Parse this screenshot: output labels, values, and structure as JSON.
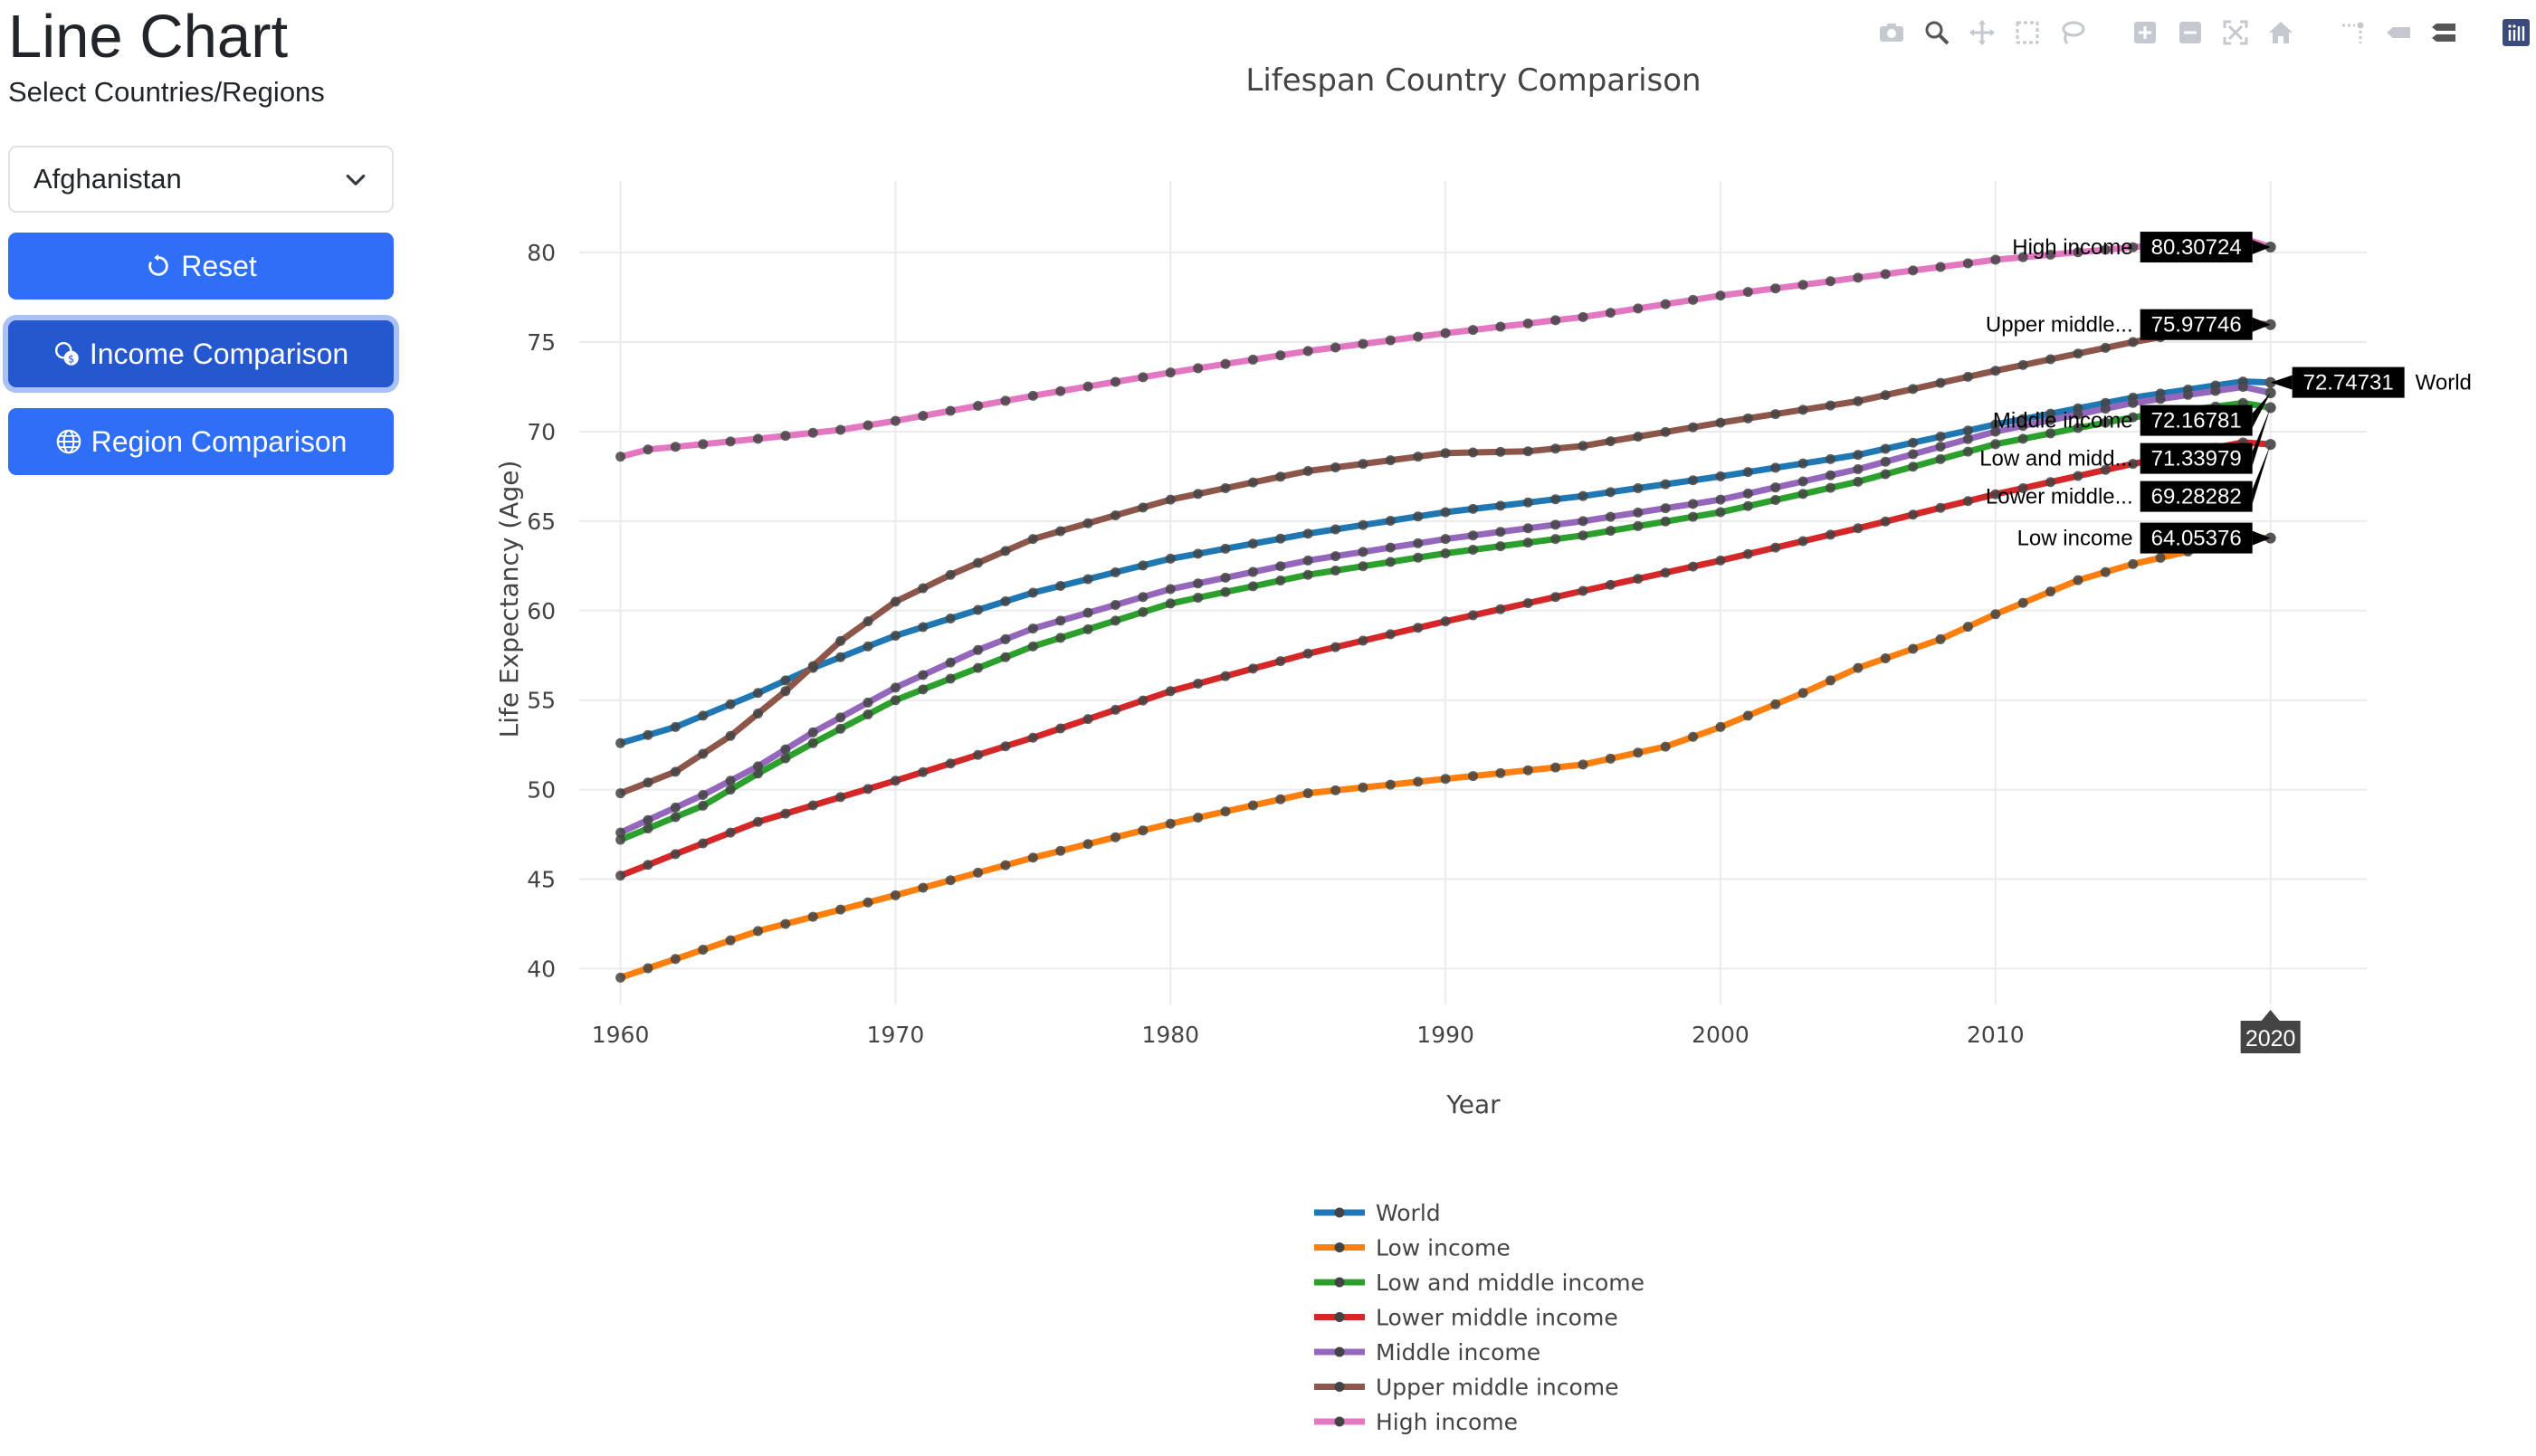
{
  "sidebar": {
    "title": "Line Chart",
    "subtitle": "Select Countries/Regions",
    "select_value": "Afghanistan",
    "reset_label": "Reset",
    "income_label": "Income Comparison",
    "region_label": "Region Comparison"
  },
  "colors": {
    "primary": "#2f6ef7",
    "primary_active": "#2558cf"
  },
  "modebar_icons": [
    "camera-icon",
    "zoom-icon",
    "pan-icon",
    "box-select-icon",
    "lasso-icon",
    "zoom-in-icon",
    "zoom-out-icon",
    "autoscale-icon",
    "reset-axes-icon",
    "spike-lines-icon",
    "hover-closest-icon",
    "hover-compare-icon",
    "plotly-logo-icon"
  ],
  "chart_data": {
    "type": "line",
    "title": "Lifespan Country Comparison",
    "xlabel": "Year",
    "ylabel": "Life Expectancy (Age)",
    "xlim": [
      1958.5,
      2023.5
    ],
    "ylim": [
      38,
      84
    ],
    "xticks": [
      1960,
      1970,
      1980,
      1990,
      2000,
      2010
    ],
    "yticks": [
      40,
      45,
      50,
      55,
      60,
      65,
      70,
      75,
      80
    ],
    "grid": true,
    "legend_position": "bottom-center",
    "hover_x_label": "2020",
    "x": [
      1960,
      1961,
      1962,
      1963,
      1964,
      1965,
      1966,
      1967,
      1968,
      1969,
      1970,
      1971,
      1972,
      1973,
      1974,
      1975,
      1976,
      1977,
      1978,
      1979,
      1980,
      1981,
      1982,
      1983,
      1984,
      1985,
      1986,
      1987,
      1988,
      1989,
      1990,
      1991,
      1992,
      1993,
      1994,
      1995,
      1996,
      1997,
      1998,
      1999,
      2000,
      2001,
      2002,
      2003,
      2004,
      2005,
      2006,
      2007,
      2008,
      2009,
      2010,
      2011,
      2012,
      2013,
      2014,
      2015,
      2016,
      2017,
      2018,
      2019,
      2020
    ],
    "series": [
      {
        "name": "World",
        "color": "#1f77b4",
        "hover_label": "World",
        "hover_value": "72.74731",
        "keyframes": [
          [
            1960,
            52.6
          ],
          [
            1962,
            53.5
          ],
          [
            1965,
            55.4
          ],
          [
            1967,
            56.8
          ],
          [
            1970,
            58.6
          ],
          [
            1975,
            61.0
          ],
          [
            1980,
            62.9
          ],
          [
            1985,
            64.3
          ],
          [
            1990,
            65.5
          ],
          [
            1995,
            66.4
          ],
          [
            2000,
            67.5
          ],
          [
            2005,
            68.7
          ],
          [
            2010,
            70.4
          ],
          [
            2015,
            71.9
          ],
          [
            2019,
            72.8
          ],
          [
            2020,
            72.74731
          ]
        ]
      },
      {
        "name": "Low income",
        "color": "#ff7f0e",
        "hover_label": "Low income",
        "hover_value": "64.05376",
        "keyframes": [
          [
            1960,
            39.5
          ],
          [
            1965,
            42.1
          ],
          [
            1970,
            44.1
          ],
          [
            1975,
            46.2
          ],
          [
            1980,
            48.1
          ],
          [
            1985,
            49.8
          ],
          [
            1990,
            50.6
          ],
          [
            1995,
            51.4
          ],
          [
            1998,
            52.4
          ],
          [
            2000,
            53.5
          ],
          [
            2003,
            55.4
          ],
          [
            2005,
            56.8
          ],
          [
            2008,
            58.4
          ],
          [
            2010,
            59.8
          ],
          [
            2013,
            61.7
          ],
          [
            2015,
            62.6
          ],
          [
            2017,
            63.3
          ],
          [
            2019,
            64.1
          ],
          [
            2020,
            64.05376
          ]
        ]
      },
      {
        "name": "Low and middle income",
        "color": "#2ca02c",
        "hover_label": "Low and midd...",
        "hover_value": "71.33979",
        "keyframes": [
          [
            1960,
            47.2
          ],
          [
            1963,
            49.1
          ],
          [
            1965,
            50.9
          ],
          [
            1967,
            52.6
          ],
          [
            1970,
            55.0
          ],
          [
            1973,
            56.8
          ],
          [
            1975,
            58.0
          ],
          [
            1980,
            60.4
          ],
          [
            1985,
            62.0
          ],
          [
            1990,
            63.2
          ],
          [
            1995,
            64.2
          ],
          [
            2000,
            65.5
          ],
          [
            2005,
            67.2
          ],
          [
            2010,
            69.3
          ],
          [
            2015,
            70.8
          ],
          [
            2019,
            71.6
          ],
          [
            2020,
            71.33979
          ]
        ]
      },
      {
        "name": "Lower middle income",
        "color": "#d62728",
        "hover_label": "Lower middle...",
        "hover_value": "69.28282",
        "keyframes": [
          [
            1960,
            45.2
          ],
          [
            1965,
            48.2
          ],
          [
            1970,
            50.5
          ],
          [
            1975,
            52.9
          ],
          [
            1980,
            55.5
          ],
          [
            1985,
            57.6
          ],
          [
            1990,
            59.4
          ],
          [
            1995,
            61.1
          ],
          [
            2000,
            62.8
          ],
          [
            2005,
            64.6
          ],
          [
            2010,
            66.5
          ],
          [
            2015,
            68.2
          ],
          [
            2019,
            69.4
          ],
          [
            2020,
            69.28282
          ]
        ]
      },
      {
        "name": "Middle income",
        "color": "#9467bd",
        "hover_label": "Middle income",
        "hover_value": "72.16781",
        "keyframes": [
          [
            1960,
            47.6
          ],
          [
            1963,
            49.7
          ],
          [
            1965,
            51.3
          ],
          [
            1967,
            53.2
          ],
          [
            1970,
            55.7
          ],
          [
            1973,
            57.8
          ],
          [
            1975,
            59.0
          ],
          [
            1980,
            61.2
          ],
          [
            1985,
            62.8
          ],
          [
            1990,
            64.0
          ],
          [
            1995,
            65.0
          ],
          [
            2000,
            66.2
          ],
          [
            2005,
            67.9
          ],
          [
            2010,
            70.0
          ],
          [
            2015,
            71.6
          ],
          [
            2019,
            72.5
          ],
          [
            2020,
            72.16781
          ]
        ]
      },
      {
        "name": "Upper middle income",
        "color": "#8c564b",
        "hover_label": "Upper middle...",
        "hover_value": "75.97746",
        "keyframes": [
          [
            1960,
            49.8
          ],
          [
            1962,
            51.0
          ],
          [
            1964,
            53.0
          ],
          [
            1966,
            55.5
          ],
          [
            1968,
            58.3
          ],
          [
            1970,
            60.5
          ],
          [
            1972,
            62.0
          ],
          [
            1975,
            64.0
          ],
          [
            1980,
            66.2
          ],
          [
            1985,
            67.8
          ],
          [
            1990,
            68.8
          ],
          [
            1993,
            68.9
          ],
          [
            1995,
            69.2
          ],
          [
            2000,
            70.5
          ],
          [
            2005,
            71.7
          ],
          [
            2010,
            73.4
          ],
          [
            2015,
            75.0
          ],
          [
            2019,
            76.1
          ],
          [
            2020,
            75.97746
          ]
        ]
      },
      {
        "name": "High income",
        "color": "#e377c2",
        "hover_label": "High income",
        "hover_value": "80.30724",
        "keyframes": [
          [
            1960,
            68.6
          ],
          [
            1961,
            69.0
          ],
          [
            1965,
            69.6
          ],
          [
            1968,
            70.1
          ],
          [
            1970,
            70.6
          ],
          [
            1975,
            72.0
          ],
          [
            1980,
            73.3
          ],
          [
            1985,
            74.5
          ],
          [
            1990,
            75.5
          ],
          [
            1995,
            76.4
          ],
          [
            2000,
            77.6
          ],
          [
            2005,
            78.6
          ],
          [
            2010,
            79.6
          ],
          [
            2015,
            80.3
          ],
          [
            2019,
            80.8
          ],
          [
            2020,
            80.30724
          ]
        ]
      }
    ]
  }
}
